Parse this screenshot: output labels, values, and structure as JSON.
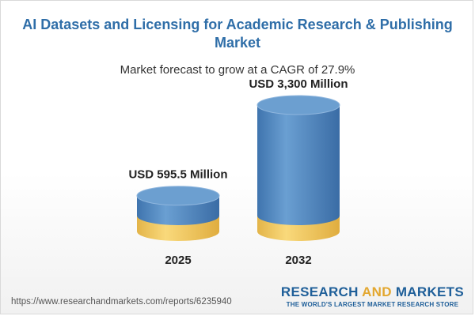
{
  "title": "AI Datasets and Licensing for Academic Research & Publishing Market",
  "subtitle": "Market forecast to grow at a CAGR of 27.9%",
  "source_url": "https://www.researchandmarkets.com/reports/6235940",
  "brand": {
    "name_part1": "RESEARCH ",
    "name_part2": "AND",
    "name_part3": " MARKETS",
    "tagline": "THE WORLD'S LARGEST MARKET RESEARCH STORE"
  },
  "colors": {
    "title": "#2f6ea8",
    "bar_blue": "#4f86c0",
    "bar_gold": "#f1c75d"
  },
  "chart_data": {
    "type": "bar",
    "categories": [
      "2025",
      "2032"
    ],
    "values": [
      595.5,
      3300
    ],
    "value_labels": [
      "USD 595.5 Million",
      "USD 3,300 Million"
    ],
    "unit": "USD Million",
    "cagr": "27.9%"
  }
}
